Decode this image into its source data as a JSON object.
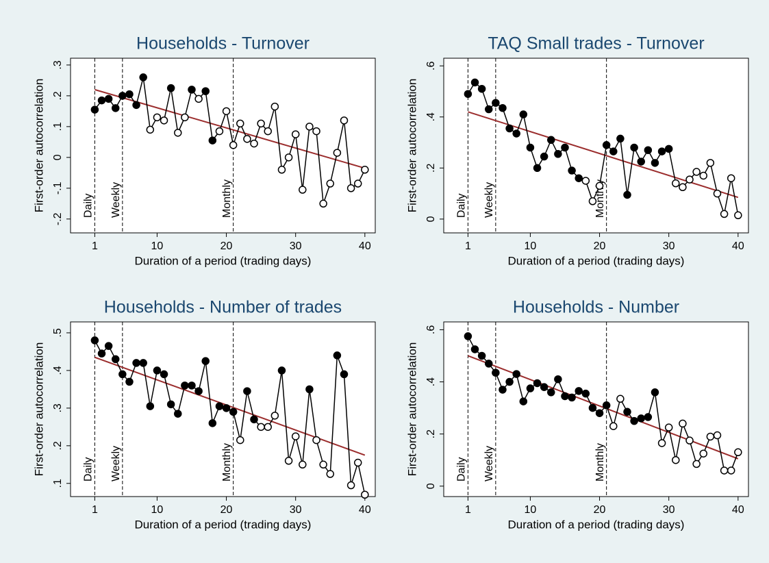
{
  "chart_data": [
    {
      "type": "line",
      "title": "Households - Turnover",
      "xlabel": "Duration of a period (trading days)",
      "ylabel": "First-order autocorrelation",
      "x": [
        1,
        2,
        3,
        4,
        5,
        6,
        7,
        8,
        9,
        10,
        11,
        12,
        13,
        14,
        15,
        16,
        17,
        18,
        19,
        20,
        21,
        22,
        23,
        24,
        25,
        26,
        27,
        28,
        29,
        30,
        31,
        32,
        33,
        34,
        35,
        36,
        37,
        38,
        39,
        40
      ],
      "values": [
        0.155,
        0.185,
        0.19,
        0.16,
        0.2,
        0.205,
        0.17,
        0.26,
        0.09,
        0.13,
        0.12,
        0.225,
        0.08,
        0.13,
        0.22,
        0.19,
        0.215,
        0.055,
        0.085,
        0.15,
        0.04,
        0.11,
        0.06,
        0.045,
        0.11,
        0.085,
        0.165,
        -0.04,
        0,
        0.075,
        -0.105,
        0.1,
        0.085,
        -0.15,
        -0.085,
        0.015,
        0.12,
        -0.1,
        -0.085,
        -0.04
      ],
      "filled": [
        true,
        true,
        true,
        true,
        true,
        true,
        true,
        true,
        false,
        false,
        false,
        true,
        false,
        false,
        true,
        false,
        true,
        true,
        false,
        false,
        false,
        false,
        false,
        false,
        false,
        false,
        false,
        false,
        false,
        false,
        false,
        false,
        false,
        false,
        false,
        false,
        false,
        false,
        false,
        false
      ],
      "color": "#000000",
      "fit": {
        "x": [
          1,
          40
        ],
        "values": [
          0.22,
          -0.035
        ],
        "color": "#9b2d2d"
      },
      "reference_lines": [
        {
          "x": 1,
          "label": "Daily"
        },
        {
          "x": 5,
          "label": "Weekly"
        },
        {
          "x": 21,
          "label": "Monthly"
        }
      ],
      "xlim": [
        -2.5,
        41.5
      ],
      "xticks": [
        1,
        10,
        20,
        30,
        40
      ],
      "ylim": [
        -0.245,
        0.322
      ],
      "yticks": [
        {
          "value": -0.2,
          "label": "-.2"
        },
        {
          "value": -0.1,
          "label": "-.1"
        },
        0,
        {
          "value": 0.1,
          "label": ".1"
        },
        {
          "value": 0.2,
          "label": ".2"
        },
        {
          "value": 0.3,
          "label": ".3"
        }
      ]
    },
    {
      "type": "line",
      "title": "TAQ Small trades - Turnover",
      "xlabel": "Duration of a period (trading days)",
      "ylabel": "First-order autocorrelation",
      "x": [
        1,
        2,
        3,
        4,
        5,
        6,
        7,
        8,
        9,
        10,
        11,
        12,
        13,
        14,
        15,
        16,
        17,
        18,
        19,
        20,
        21,
        22,
        23,
        24,
        25,
        26,
        27,
        28,
        29,
        30,
        31,
        32,
        33,
        34,
        35,
        36,
        37,
        38,
        39,
        40
      ],
      "values": [
        0.49,
        0.535,
        0.51,
        0.43,
        0.455,
        0.435,
        0.355,
        0.335,
        0.41,
        0.28,
        0.2,
        0.245,
        0.31,
        0.255,
        0.28,
        0.19,
        0.16,
        0.15,
        0.07,
        0.13,
        0.29,
        0.265,
        0.315,
        0.095,
        0.28,
        0.225,
        0.27,
        0.22,
        0.265,
        0.275,
        0.14,
        0.125,
        0.155,
        0.185,
        0.17,
        0.22,
        0.1,
        0.02,
        0.16,
        0.015
      ],
      "filled": [
        true,
        true,
        true,
        true,
        true,
        true,
        true,
        true,
        true,
        true,
        true,
        true,
        true,
        true,
        true,
        true,
        true,
        false,
        false,
        false,
        true,
        true,
        true,
        true,
        true,
        true,
        true,
        true,
        true,
        true,
        false,
        false,
        false,
        false,
        false,
        false,
        false,
        false,
        false,
        false
      ],
      "color": "#000000",
      "fit": {
        "x": [
          1,
          40
        ],
        "values": [
          0.42,
          0.085
        ],
        "color": "#9b2d2d"
      },
      "reference_lines": [
        {
          "x": 1,
          "label": "Daily"
        },
        {
          "x": 5,
          "label": "Weekly"
        },
        {
          "x": 21,
          "label": "Monthly"
        }
      ],
      "xlim": [
        -2.5,
        41.5
      ],
      "xticks": [
        1,
        10,
        20,
        30,
        40
      ],
      "ylim": [
        -0.054,
        0.63
      ],
      "yticks": [
        0,
        {
          "value": 0.2,
          "label": ".2"
        },
        {
          "value": 0.4,
          "label": ".4"
        },
        {
          "value": 0.6,
          "label": ".6"
        }
      ]
    },
    {
      "type": "line",
      "title": "Households - Number of trades",
      "xlabel": "Duration of a period (trading days)",
      "ylabel": "First-order autocorrelation",
      "x": [
        1,
        2,
        3,
        4,
        5,
        6,
        7,
        8,
        9,
        10,
        11,
        12,
        13,
        14,
        15,
        16,
        17,
        18,
        19,
        20,
        21,
        22,
        23,
        24,
        25,
        26,
        27,
        28,
        29,
        30,
        31,
        32,
        33,
        34,
        35,
        36,
        37,
        38,
        39,
        40
      ],
      "values": [
        0.48,
        0.445,
        0.465,
        0.43,
        0.39,
        0.37,
        0.42,
        0.42,
        0.305,
        0.4,
        0.39,
        0.31,
        0.285,
        0.36,
        0.36,
        0.345,
        0.425,
        0.26,
        0.305,
        0.3,
        0.29,
        0.215,
        0.345,
        0.27,
        0.25,
        0.25,
        0.28,
        0.4,
        0.16,
        0.225,
        0.15,
        0.35,
        0.215,
        0.15,
        0.125,
        0.44,
        0.39,
        0.095,
        0.155,
        0.07
      ],
      "filled": [
        true,
        true,
        true,
        true,
        true,
        true,
        true,
        true,
        true,
        true,
        true,
        true,
        true,
        true,
        true,
        true,
        true,
        true,
        true,
        true,
        true,
        false,
        true,
        true,
        false,
        false,
        false,
        true,
        false,
        false,
        false,
        true,
        false,
        false,
        false,
        true,
        true,
        false,
        false,
        false
      ],
      "color": "#000000",
      "fit": {
        "x": [
          1,
          40
        ],
        "values": [
          0.435,
          0.175
        ],
        "color": "#9b2d2d"
      },
      "reference_lines": [
        {
          "x": 1,
          "label": "Daily"
        },
        {
          "x": 5,
          "label": "Weekly"
        },
        {
          "x": 21,
          "label": "Monthly"
        }
      ],
      "xlim": [
        -2.5,
        41.5
      ],
      "xticks": [
        1,
        10,
        20,
        30,
        40
      ],
      "ylim": [
        0.065,
        0.529
      ],
      "yticks": [
        {
          "value": 0.1,
          "label": ".1"
        },
        {
          "value": 0.2,
          "label": ".2"
        },
        {
          "value": 0.3,
          "label": ".3"
        },
        {
          "value": 0.4,
          "label": ".4"
        },
        {
          "value": 0.5,
          "label": ".5"
        }
      ]
    },
    {
      "type": "line",
      "title": "Households - Number",
      "xlabel": "Duration of a period (trading days)",
      "ylabel": "First-order autocorrelation",
      "x": [
        1,
        2,
        3,
        4,
        5,
        6,
        7,
        8,
        9,
        10,
        11,
        12,
        13,
        14,
        15,
        16,
        17,
        18,
        19,
        20,
        21,
        22,
        23,
        24,
        25,
        26,
        27,
        28,
        29,
        30,
        31,
        32,
        33,
        34,
        35,
        36,
        37,
        38,
        39,
        40
      ],
      "values": [
        0.575,
        0.525,
        0.5,
        0.47,
        0.435,
        0.37,
        0.4,
        0.43,
        0.325,
        0.375,
        0.395,
        0.38,
        0.36,
        0.41,
        0.345,
        0.34,
        0.365,
        0.355,
        0.3,
        0.28,
        0.31,
        0.23,
        0.335,
        0.285,
        0.25,
        0.26,
        0.265,
        0.36,
        0.165,
        0.225,
        0.1,
        0.24,
        0.175,
        0.085,
        0.125,
        0.19,
        0.195,
        0.06,
        0.06,
        0.13
      ],
      "filled": [
        true,
        true,
        true,
        true,
        true,
        true,
        true,
        true,
        true,
        true,
        true,
        true,
        true,
        true,
        true,
        true,
        true,
        true,
        true,
        true,
        true,
        false,
        false,
        true,
        true,
        true,
        true,
        true,
        false,
        false,
        false,
        false,
        false,
        false,
        false,
        false,
        false,
        false,
        false,
        false
      ],
      "color": "#000000",
      "fit": {
        "x": [
          1,
          40
        ],
        "values": [
          0.5,
          0.105
        ],
        "color": "#9b2d2d"
      },
      "reference_lines": [
        {
          "x": 1,
          "label": "Daily"
        },
        {
          "x": 5,
          "label": "Weekly"
        },
        {
          "x": 21,
          "label": "Monthly"
        }
      ],
      "xlim": [
        -2.5,
        41.5
      ],
      "xticks": [
        1,
        10,
        20,
        30,
        40
      ],
      "ylim": [
        -0.04,
        0.63
      ],
      "yticks": [
        0,
        {
          "value": 0.2,
          "label": ".2"
        },
        {
          "value": 0.4,
          "label": ".4"
        },
        {
          "value": 0.6,
          "label": ".6"
        }
      ]
    }
  ]
}
